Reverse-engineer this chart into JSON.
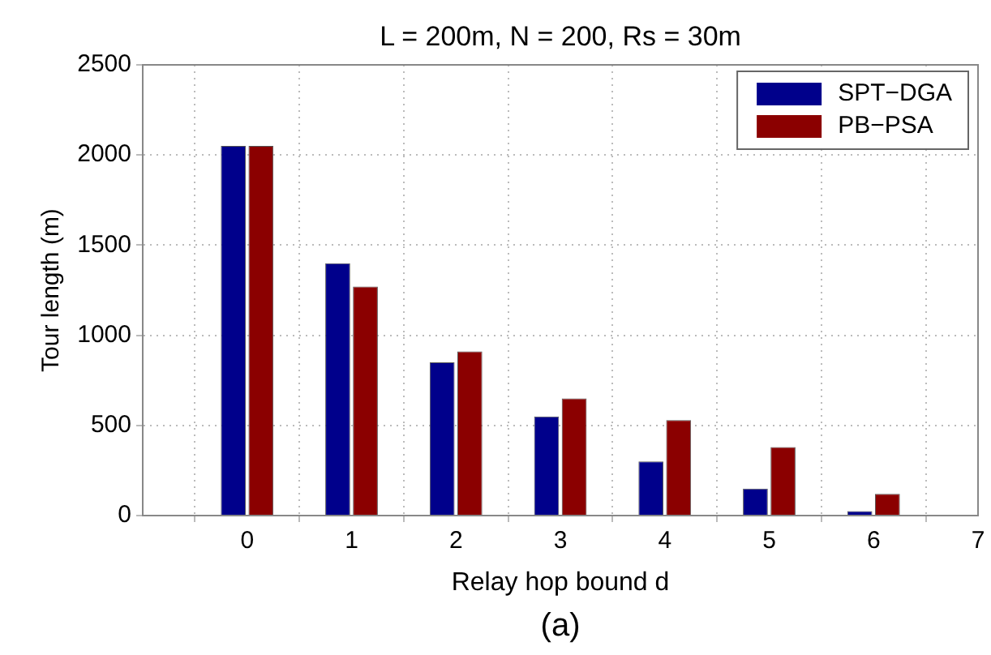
{
  "chart_data": {
    "type": "bar",
    "title": "L = 200m, N = 200, Rs = 30m",
    "xlabel": "Relay hop bound d",
    "ylabel": "Tour length (m)",
    "annotations": [
      "(a)"
    ],
    "x": [
      0,
      1,
      2,
      3,
      4,
      5,
      6
    ],
    "series": [
      {
        "name": "SPT−DGA",
        "color": "#00008b",
        "values": [
          2050,
          1400,
          850,
          550,
          300,
          150,
          25
        ]
      },
      {
        "name": "PB−PSA",
        "color": "#8b0000",
        "values": [
          2050,
          1270,
          910,
          650,
          530,
          380,
          120
        ]
      }
    ],
    "xlim": [
      -1,
      7
    ],
    "xticks": [
      0,
      1,
      2,
      3,
      4,
      5,
      6,
      7
    ],
    "ylim": [
      0,
      2500
    ],
    "yticks": [
      0,
      500,
      1000,
      1500,
      2000,
      2500
    ],
    "grid": true,
    "legend": "top right"
  }
}
